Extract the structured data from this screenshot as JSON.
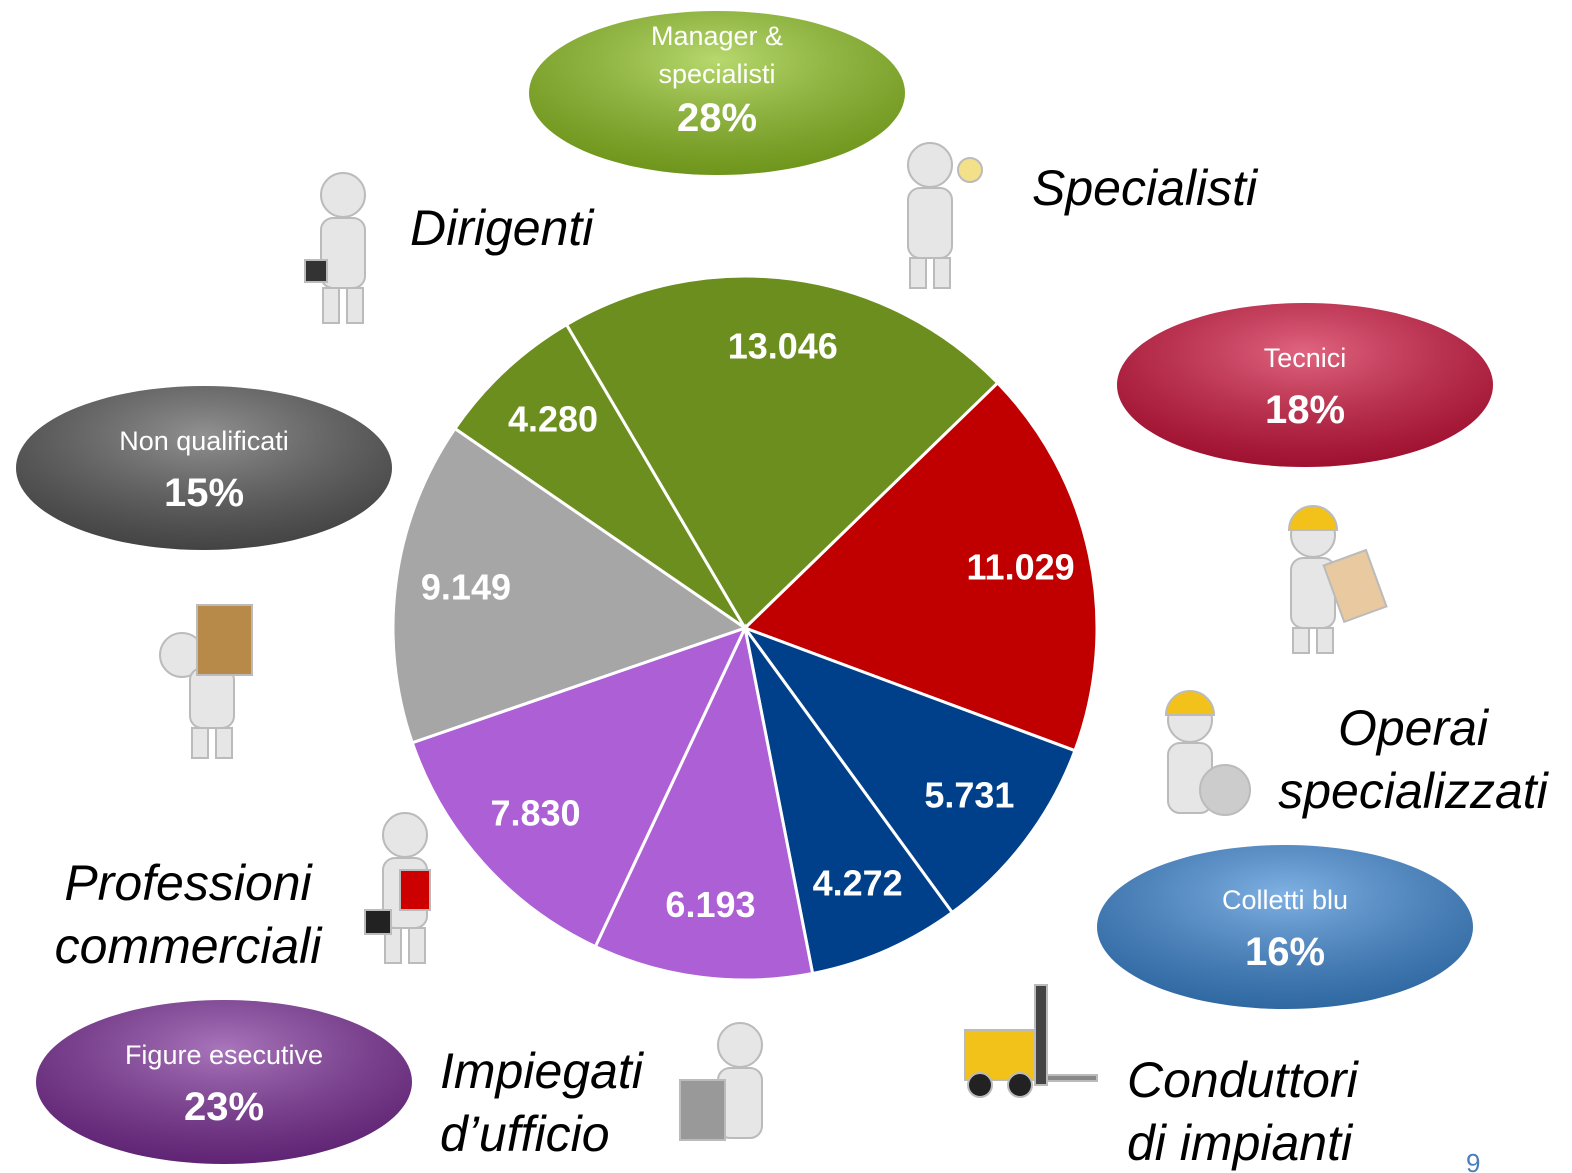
{
  "chart_data": {
    "type": "pie",
    "values": [
      4280,
      13046,
      11029,
      5731,
      4272,
      6193,
      7830,
      9149
    ],
    "value_labels": [
      "4.280",
      "13.046",
      "11.029",
      "5.731",
      "4.272",
      "6.193",
      "7.830",
      "9.149"
    ],
    "colors": [
      "#6b8e1e",
      "#6b8e1e",
      "#c00000",
      "#003f8a",
      "#003f8a",
      "#ad5fd6",
      "#ad5fd6",
      "#a6a6a6"
    ],
    "groups": [
      {
        "name": "Manager & specialisti",
        "value": 28,
        "value_label": "28%",
        "color": "#8fc31f"
      },
      {
        "name": "Tecnici",
        "value": 18,
        "value_label": "18%",
        "color": "#d0103a"
      },
      {
        "name": "Non qualificati",
        "value": 15,
        "value_label": "15%",
        "color": "#555555"
      },
      {
        "name": "Colletti blu",
        "value": 16,
        "value_label": "16%",
        "color": "#3a86d4"
      },
      {
        "name": "Figure esecutive",
        "value": 23,
        "value_label": "23%",
        "color": "#7a2a96"
      }
    ],
    "roles": [
      {
        "lines": [
          "Dirigenti"
        ]
      },
      {
        "lines": [
          "Specialisti"
        ]
      },
      {
        "lines": [
          "Operai",
          "specializzati"
        ]
      },
      {
        "lines": [
          "Professioni",
          "commerciali"
        ]
      },
      {
        "lines": [
          "Impiegati",
          "d’ufficio"
        ]
      },
      {
        "lines": [
          "Conduttori",
          "di impianti"
        ]
      }
    ],
    "page_number": "9"
  }
}
